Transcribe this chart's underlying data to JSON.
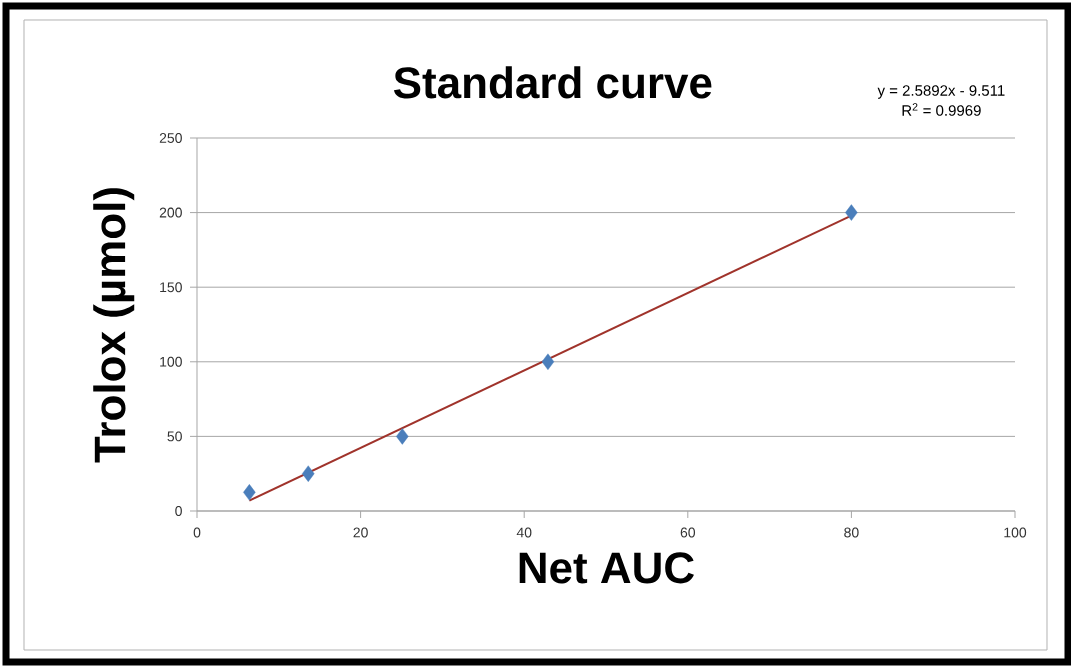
{
  "chart_data": {
    "type": "scatter",
    "title": "Standard curve",
    "xlabel": "Net AUC",
    "ylabel": "Trolox (µmol)",
    "annotations": [
      "y = 2.5892x - 9.511",
      "R$^{2}$ = 0.9969"
    ],
    "series": [
      {
        "color": "#4a7ebb",
        "marker": "diamond",
        "x": [
          6.4,
          13.6,
          25.1,
          42.9,
          80
        ],
        "values": [
          12.5,
          25,
          50,
          100,
          200
        ]
      },
      {
        "type": "line",
        "color": "#a0332b",
        "marker": "none",
        "line_style": "solid",
        "x": [
          6.4,
          80
        ],
        "values": [
          7,
          198
        ]
      }
    ],
    "xlim": [
      0,
      100
    ],
    "ylim": [
      0,
      250
    ],
    "xticks": [
      0,
      20,
      40,
      60,
      80,
      100
    ],
    "yticks": [
      0,
      50,
      100,
      150,
      200,
      250
    ],
    "grid": "y"
  }
}
